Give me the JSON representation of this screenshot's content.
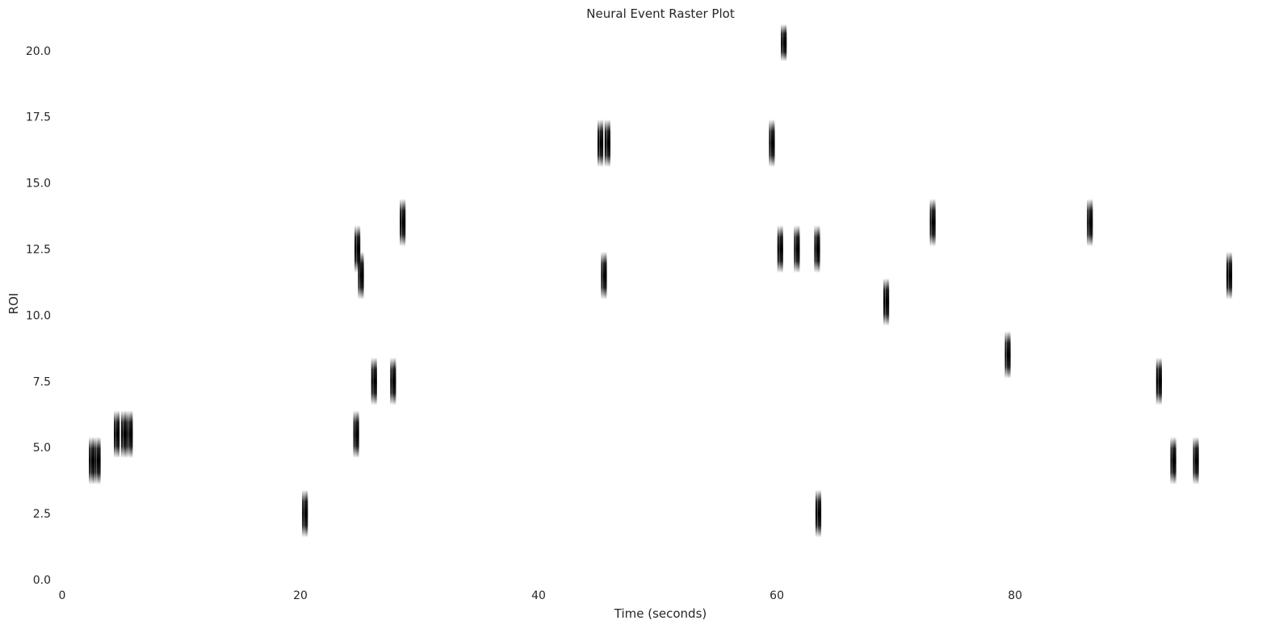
{
  "chart_data": {
    "type": "scatter",
    "title": "Neural Event Raster Plot",
    "xlabel": "Time (seconds)",
    "ylabel": "ROI",
    "xlim": [
      0,
      98.5
    ],
    "ylim": [
      0,
      21
    ],
    "xticks": [
      0,
      20,
      40,
      60,
      80
    ],
    "xtick_labels": [
      "0",
      "20",
      "40",
      "60",
      "80"
    ],
    "yticks": [
      0,
      2.5,
      5,
      7.5,
      10,
      12.5,
      15,
      17.5,
      20
    ],
    "ytick_labels": [
      "0.0",
      "2.5",
      "5.0",
      "7.5",
      "10.0",
      "12.5",
      "15.0",
      "17.5",
      "20.0"
    ],
    "grid": false,
    "marker": "vertical-line",
    "color": "#000000",
    "events": [
      {
        "t": 2.5,
        "roi": 4.5
      },
      {
        "t": 3.0,
        "roi": 4.5
      },
      {
        "t": 4.6,
        "roi": 5.5
      },
      {
        "t": 5.2,
        "roi": 5.5
      },
      {
        "t": 5.7,
        "roi": 5.5
      },
      {
        "t": 20.4,
        "roi": 2.5
      },
      {
        "t": 24.8,
        "roi": 12.5
      },
      {
        "t": 25.1,
        "roi": 11.5
      },
      {
        "t": 24.7,
        "roi": 5.5
      },
      {
        "t": 26.2,
        "roi": 7.5
      },
      {
        "t": 27.8,
        "roi": 7.5
      },
      {
        "t": 28.6,
        "roi": 13.5
      },
      {
        "t": 45.2,
        "roi": 16.5
      },
      {
        "t": 45.8,
        "roi": 16.5
      },
      {
        "t": 45.5,
        "roi": 11.5
      },
      {
        "t": 59.6,
        "roi": 16.5
      },
      {
        "t": 60.3,
        "roi": 12.5
      },
      {
        "t": 60.6,
        "roi": 20.5
      },
      {
        "t": 61.7,
        "roi": 12.5
      },
      {
        "t": 63.4,
        "roi": 12.5
      },
      {
        "t": 63.5,
        "roi": 2.5
      },
      {
        "t": 69.2,
        "roi": 10.5
      },
      {
        "t": 73.1,
        "roi": 13.5
      },
      {
        "t": 79.4,
        "roi": 8.5
      },
      {
        "t": 86.3,
        "roi": 13.5
      },
      {
        "t": 92.1,
        "roi": 7.5
      },
      {
        "t": 93.3,
        "roi": 4.5
      },
      {
        "t": 95.2,
        "roi": 4.5
      },
      {
        "t": 98.0,
        "roi": 11.5
      }
    ]
  }
}
